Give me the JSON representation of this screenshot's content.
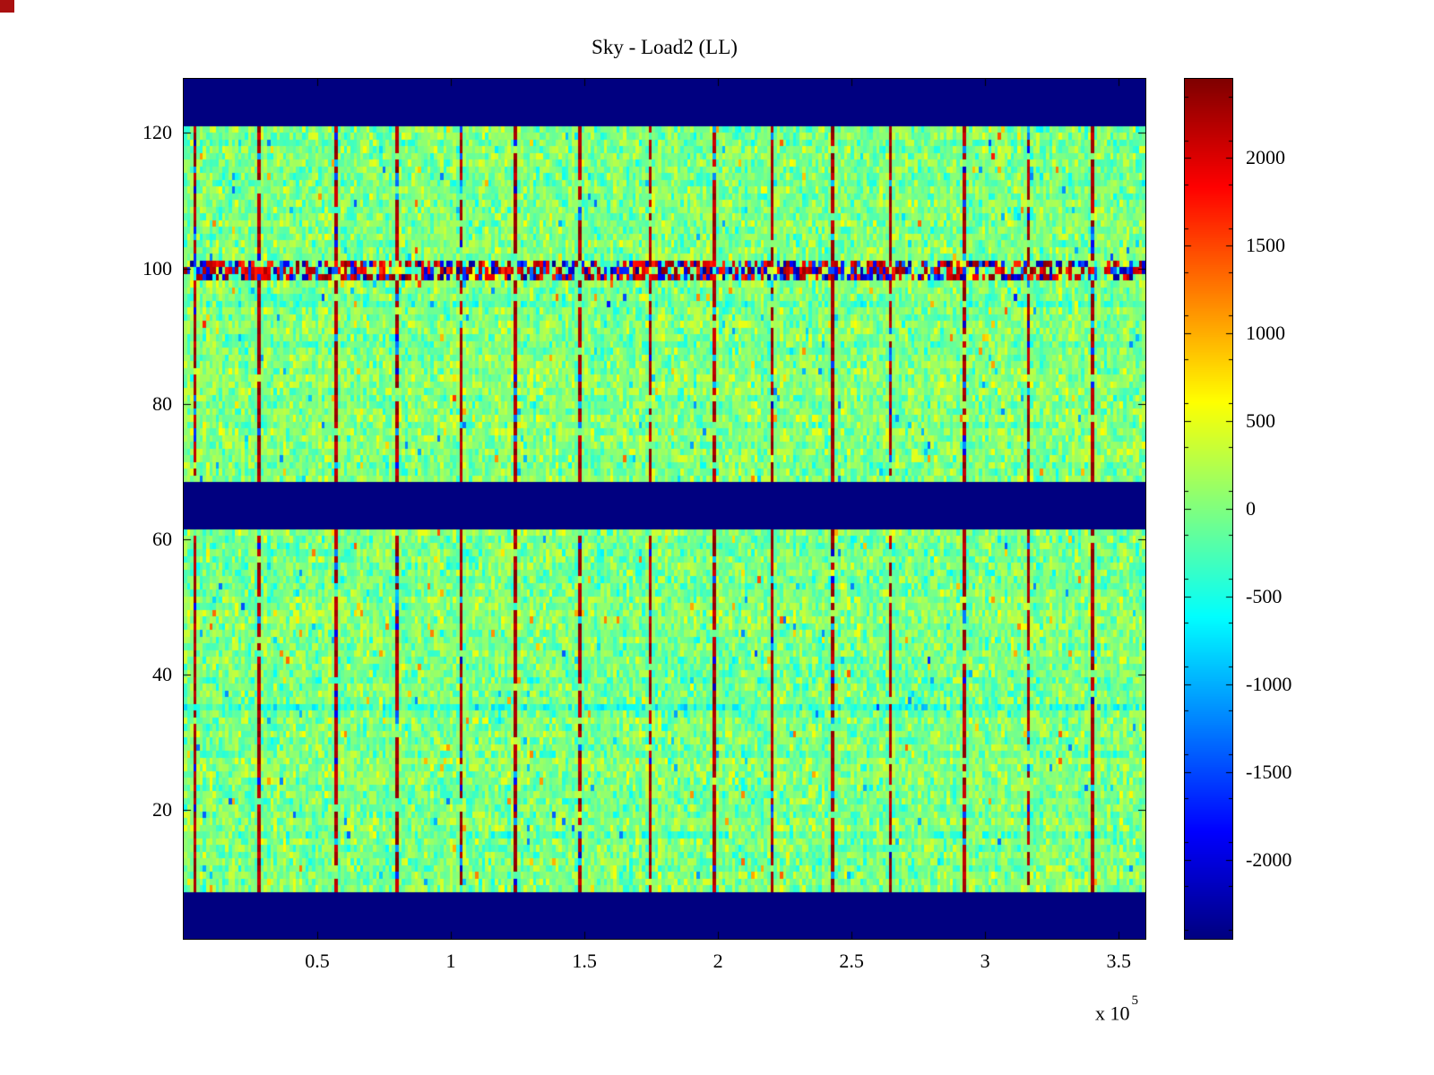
{
  "title": "Sky - Load2 (LL)",
  "artifact": {
    "color": "#aa1010"
  },
  "chart_data": {
    "type": "heatmap",
    "title": "Sky - Load2 (LL)",
    "xlabel": "",
    "ylabel": "",
    "x_range": [
      0,
      360000
    ],
    "y_range": [
      1,
      128
    ],
    "x_ticks": [
      {
        "label": "0.5",
        "value": 50000
      },
      {
        "label": "1",
        "value": 100000
      },
      {
        "label": "1.5",
        "value": 150000
      },
      {
        "label": "2",
        "value": 200000
      },
      {
        "label": "2.5",
        "value": 250000
      },
      {
        "label": "3",
        "value": 300000
      },
      {
        "label": "3.5",
        "value": 350000
      }
    ],
    "x_scale_note": {
      "prefix": "x 10",
      "exponent": "5"
    },
    "y_ticks": [
      {
        "label": "20",
        "value": 20
      },
      {
        "label": "40",
        "value": 40
      },
      {
        "label": "60",
        "value": 60
      },
      {
        "label": "80",
        "value": 80
      },
      {
        "label": "100",
        "value": 100
      },
      {
        "label": "120",
        "value": 120
      }
    ],
    "colormap": "jet",
    "color_range": [
      -2450,
      2450
    ],
    "colorbar_ticks": [
      {
        "label": "2000",
        "value": 2000
      },
      {
        "label": "1500",
        "value": 1500
      },
      {
        "label": "1000",
        "value": 1000
      },
      {
        "label": "500",
        "value": 500
      },
      {
        "label": "0",
        "value": 0
      },
      {
        "label": "-500",
        "value": -500
      },
      {
        "label": "-1000",
        "value": -1000
      },
      {
        "label": "-1500",
        "value": -1500
      },
      {
        "label": "-2000",
        "value": -2000
      }
    ],
    "colorbar_minor_tick_step": 250,
    "grid": {
      "cols": 300,
      "rows": 128
    },
    "seed": 1337,
    "background_noise": {
      "mean": 0,
      "spread": 300,
      "outlier_chance": 0.02,
      "row_streak_spread": 90,
      "col_streak_spread": 55
    },
    "navy_band_rows": [
      [
        1,
        7
      ],
      [
        62,
        68
      ],
      [
        122,
        128
      ]
    ],
    "speckle_band_rows": [
      99,
      101
    ],
    "vertical_line_x": [
      4000,
      27500,
      56000,
      79500,
      103000,
      123000,
      147000,
      173500,
      198000,
      220000,
      242000,
      264000,
      291000,
      316000,
      339000
    ],
    "accent_rows": [
      {
        "row": 35,
        "bias": -430
      },
      {
        "row": 16,
        "bias": -190
      },
      {
        "row": 27,
        "bias": 150
      },
      {
        "row": 51,
        "bias": 140
      },
      {
        "row": 95,
        "bias": -120
      }
    ]
  }
}
